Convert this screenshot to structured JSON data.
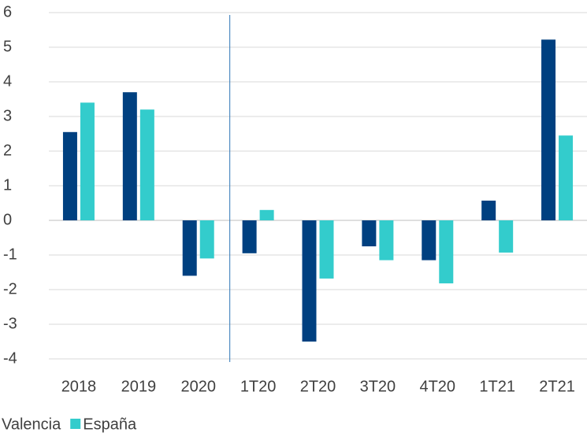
{
  "chart_data": {
    "type": "bar",
    "categories": [
      "2018",
      "2019",
      "2020",
      "1T20",
      "2T20",
      "3T20",
      "4T20",
      "1T21",
      "2T21"
    ],
    "series": [
      {
        "name": "Valencia",
        "color": "#004080",
        "values": [
          2.55,
          3.7,
          -1.6,
          -0.95,
          -3.5,
          -0.75,
          -1.15,
          0.57,
          5.22
        ]
      },
      {
        "name": "España",
        "color": "#33cccc",
        "values": [
          3.4,
          3.2,
          -1.1,
          0.3,
          -1.68,
          -1.15,
          -1.82,
          -0.93,
          2.45
        ]
      }
    ],
    "ylim": [
      -4,
      6
    ],
    "yticks": [
      -4,
      -3,
      -2,
      -1,
      0,
      1,
      2,
      3,
      4,
      5,
      6
    ],
    "grid": true,
    "legend": "bottom"
  }
}
